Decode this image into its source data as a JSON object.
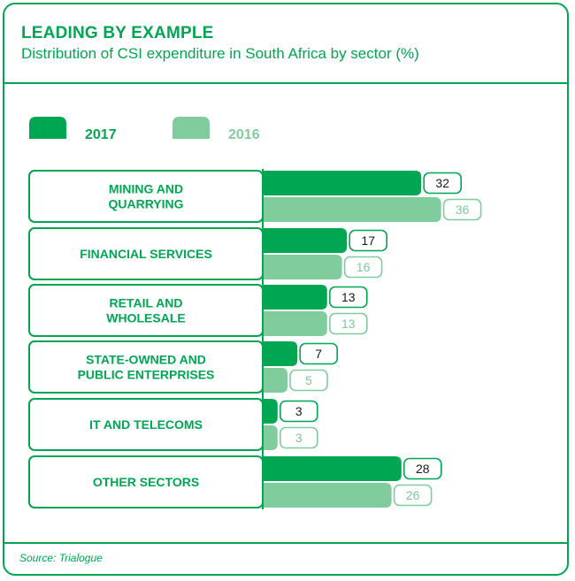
{
  "header": {
    "title": "LEADING BY EXAMPLE",
    "subtitle": "Distribution of CSI expenditure in South Africa by sector (%)"
  },
  "footer": {
    "source": "Source: Trialogue"
  },
  "chart_data": {
    "type": "bar",
    "orientation": "horizontal",
    "title": "LEADING BY EXAMPLE",
    "subtitle": "Distribution of CSI expenditure in South Africa by sector (%)",
    "categories": [
      [
        "MINING AND",
        "QUARRYING"
      ],
      [
        "FINANCIAL SERVICES"
      ],
      [
        "RETAIL AND",
        "WHOLESALE"
      ],
      [
        "STATE-OWNED AND",
        "PUBLIC ENTERPRISES"
      ],
      [
        "IT AND TELECOMS"
      ],
      [
        "OTHER SECTORS"
      ]
    ],
    "series": [
      {
        "name": "2017",
        "values": [
          32,
          17,
          13,
          7,
          3,
          28
        ],
        "color": "#00a651"
      },
      {
        "name": "2016",
        "values": [
          36,
          16,
          13,
          5,
          3,
          26
        ],
        "color": "#80cc9c"
      }
    ],
    "legend_position": "top-left",
    "grid": false,
    "accent_color": "#00a651"
  }
}
